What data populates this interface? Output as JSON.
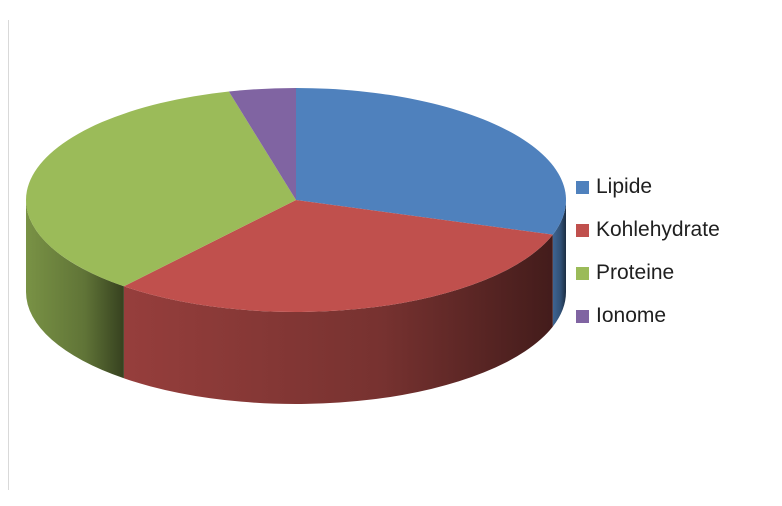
{
  "chart_data": {
    "type": "pie",
    "title": "",
    "categories": [
      "Lipide",
      "Kohlehydrate",
      "Proteine",
      "Ionome"
    ],
    "values": [
      30,
      31,
      35,
      4
    ],
    "value_unit": "approx. percent of total (estimated from slice angles)",
    "colors": [
      "#4F81BD",
      "#C0504D",
      "#9BBB59",
      "#8064A2"
    ],
    "style": "3d-exploded-none",
    "legend": {
      "position": "right"
    }
  }
}
